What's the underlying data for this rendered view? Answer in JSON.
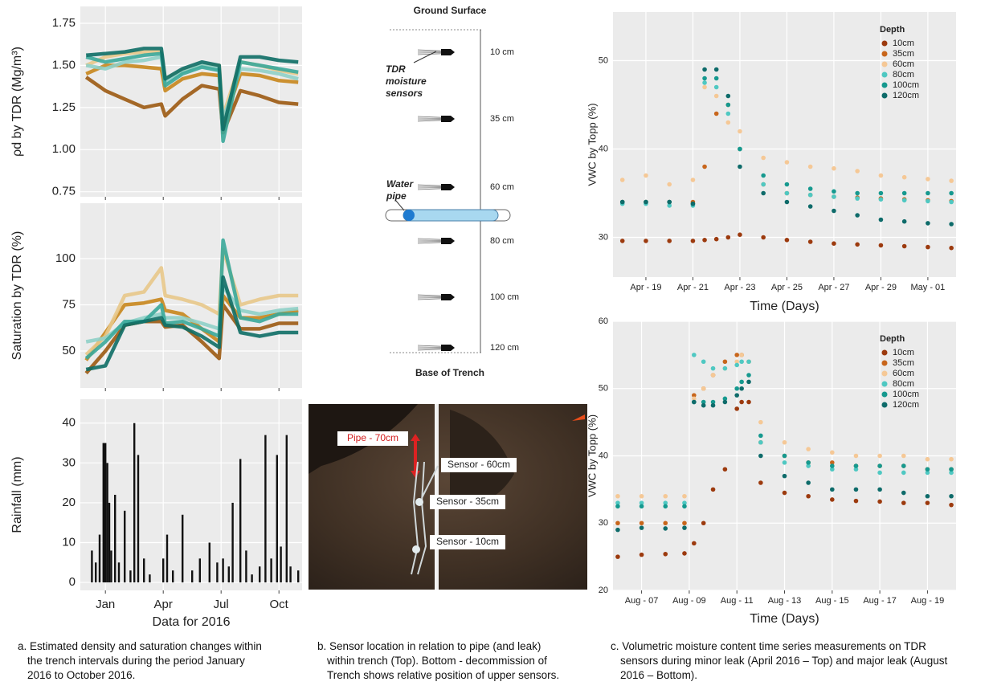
{
  "chart_data": [
    {
      "type": "line",
      "ylabel": "ρd by TDR (Mg/m³)",
      "x": [
        0,
        1,
        2,
        3,
        3.9,
        4.1,
        5,
        6,
        6.9,
        7.1,
        8,
        9,
        10,
        11
      ],
      "xlim": [
        -0.3,
        11.2
      ],
      "ylim": [
        0.72,
        1.85
      ],
      "yticks": [
        0.75,
        {
          "value": 1,
          "label": "1.00"
        },
        1.25,
        {
          "value": 1.5,
          "label": "1.50"
        },
        1.75
      ],
      "grid": true,
      "series": [
        {
          "color": "#9c5a12",
          "values": [
            1.43,
            1.35,
            1.3,
            1.25,
            1.27,
            1.2,
            1.3,
            1.38,
            1.36,
            1.1,
            1.35,
            1.32,
            1.28,
            1.27
          ]
        },
        {
          "color": "#c8861c",
          "values": [
            1.45,
            1.5,
            1.5,
            1.49,
            1.48,
            1.35,
            1.42,
            1.45,
            1.44,
            1.15,
            1.45,
            1.44,
            1.41,
            1.4
          ]
        },
        {
          "color": "#e8c88a",
          "values": [
            1.5,
            1.55,
            1.57,
            1.58,
            1.58,
            1.42,
            1.47,
            1.5,
            1.5,
            1.2,
            1.52,
            1.5,
            1.47,
            1.45
          ]
        },
        {
          "color": "#8fd0c8",
          "values": [
            1.5,
            1.48,
            1.52,
            1.53,
            1.55,
            1.4,
            1.46,
            1.5,
            1.48,
            1.18,
            1.48,
            1.47,
            1.45,
            1.42
          ]
        },
        {
          "color": "#3aa89a",
          "values": [
            1.55,
            1.52,
            1.54,
            1.56,
            1.57,
            1.38,
            1.45,
            1.49,
            1.47,
            1.05,
            1.52,
            1.5,
            1.48,
            1.46
          ]
        },
        {
          "color": "#0e6e66",
          "values": [
            1.56,
            1.57,
            1.58,
            1.6,
            1.6,
            1.42,
            1.48,
            1.52,
            1.5,
            1.12,
            1.55,
            1.55,
            1.53,
            1.52
          ]
        }
      ]
    },
    {
      "type": "line",
      "ylabel": "Saturation by TDR (%)",
      "x": [
        0,
        1,
        2,
        3,
        3.9,
        4.1,
        5,
        6,
        6.9,
        7.1,
        8,
        9,
        10,
        11
      ],
      "xlim": [
        -0.3,
        11.2
      ],
      "ylim": [
        30,
        130
      ],
      "yticks": [
        50,
        75,
        100
      ],
      "grid": true,
      "series": [
        {
          "color": "#9c5a12",
          "values": [
            38,
            50,
            64,
            66,
            66,
            63,
            64,
            55,
            46,
            75,
            62,
            62,
            65,
            65
          ]
        },
        {
          "color": "#c8861c",
          "values": [
            45,
            60,
            75,
            76,
            78,
            72,
            70,
            62,
            55,
            80,
            68,
            68,
            70,
            72
          ]
        },
        {
          "color": "#e8c88a",
          "values": [
            48,
            58,
            80,
            82,
            95,
            80,
            78,
            75,
            70,
            105,
            75,
            78,
            80,
            80
          ]
        },
        {
          "color": "#8fd0c8",
          "values": [
            55,
            57,
            65,
            68,
            70,
            68,
            68,
            65,
            62,
            85,
            72,
            70,
            72,
            73
          ]
        },
        {
          "color": "#3aa89a",
          "values": [
            46,
            55,
            66,
            66,
            75,
            65,
            66,
            62,
            58,
            110,
            68,
            66,
            70,
            70
          ]
        },
        {
          "color": "#0e6e66",
          "values": [
            40,
            42,
            64,
            66,
            68,
            64,
            63,
            58,
            52,
            90,
            60,
            58,
            60,
            60
          ]
        }
      ]
    },
    {
      "type": "bar",
      "ylabel": "Rainfall (mm)",
      "xlabel": "Data for 2016",
      "color": "#111",
      "x": [
        0.3,
        0.5,
        0.7,
        0.9,
        1.0,
        1.1,
        1.2,
        1.3,
        1.5,
        1.7,
        2.0,
        2.3,
        2.5,
        2.7,
        3.0,
        3.3,
        4.0,
        4.2,
        4.5,
        5.0,
        5.5,
        5.9,
        6.4,
        6.8,
        7.1,
        7.4,
        7.6,
        8.0,
        8.3,
        8.6,
        9.0,
        9.3,
        9.6,
        9.9,
        10.1,
        10.4,
        10.6,
        11.0
      ],
      "values": [
        8,
        5,
        12,
        35,
        35,
        30,
        20,
        8,
        22,
        5,
        18,
        3,
        40,
        32,
        6,
        2,
        6,
        12,
        3,
        17,
        3,
        6,
        10,
        5,
        6,
        4,
        20,
        31,
        8,
        2,
        4,
        37,
        6,
        32,
        9,
        37,
        4,
        3
      ],
      "xlim": [
        -0.3,
        11.2
      ],
      "xticks": [
        {
          "value": 1,
          "label": "Jan"
        },
        {
          "value": 4,
          "label": "Apr"
        },
        {
          "value": 7,
          "label": "Jul"
        },
        {
          "value": 10,
          "label": "Oct"
        }
      ],
      "ylim": [
        -2,
        46
      ],
      "yticks": [
        0,
        10,
        20,
        30,
        40
      ],
      "grid": true
    },
    {
      "type": "scatter",
      "ylabel": "VWC by Topp (%)",
      "xlabel": "Time (Days)",
      "legend_title": "Depth",
      "legend": "top-right",
      "x": [
        18,
        19,
        20,
        21,
        21.5,
        22,
        22.5,
        23,
        24,
        25,
        26,
        27,
        28,
        29,
        30,
        31,
        32
      ],
      "xlim": [
        17.6,
        32.2
      ],
      "xticks": [
        {
          "value": 19,
          "label": "Apr - 19"
        },
        {
          "value": 21,
          "label": "Apr - 21"
        },
        {
          "value": 23,
          "label": "Apr - 23"
        },
        {
          "value": 25,
          "label": "Apr - 25"
        },
        {
          "value": 27,
          "label": "Apr - 27"
        },
        {
          "value": 29,
          "label": "Apr - 29"
        },
        {
          "value": 31,
          "label": "May - 01"
        }
      ],
      "ylim": [
        25.5,
        55.5
      ],
      "yticks": [
        30,
        40,
        50
      ],
      "grid": true,
      "series": [
        {
          "name": "10cm",
          "color": "#9c3a0e",
          "values": [
            29.6,
            29.6,
            29.6,
            29.6,
            29.7,
            29.8,
            30.0,
            30.3,
            30.0,
            29.7,
            29.5,
            29.3,
            29.2,
            29.1,
            29.0,
            28.9,
            28.8
          ]
        },
        {
          "name": "35cm",
          "color": "#c8661c",
          "values": [
            34,
            34,
            34,
            34,
            38,
            44,
            45,
            40,
            36,
            35,
            34.8,
            34.6,
            34.5,
            34.4,
            34.3,
            34.2,
            34.1
          ]
        },
        {
          "name": "60cm",
          "color": "#f5c896",
          "values": [
            36.5,
            37,
            36,
            36.5,
            47,
            46,
            43,
            42,
            39,
            38.5,
            38,
            37.8,
            37.5,
            37,
            36.8,
            36.6,
            36.4
          ]
        },
        {
          "name": "80cm",
          "color": "#4fc8c2",
          "values": [
            33.8,
            33.8,
            33.6,
            33.6,
            47.5,
            47,
            44,
            40,
            36,
            35,
            34.8,
            34.6,
            34.4,
            34.3,
            34.2,
            34.1,
            34.0
          ]
        },
        {
          "name": "100cm",
          "color": "#16998f",
          "values": [
            34,
            34,
            34,
            33.8,
            48,
            48,
            45,
            40,
            37,
            36,
            35.5,
            35.2,
            35,
            35,
            35,
            35,
            35
          ]
        },
        {
          "name": "120cm",
          "color": "#0e6b6a",
          "values": [
            34,
            34,
            34,
            33.8,
            49,
            49,
            46,
            38,
            35,
            34,
            33.5,
            33,
            32.5,
            32,
            31.8,
            31.6,
            31.5
          ]
        }
      ]
    },
    {
      "type": "scatter",
      "ylabel": "VWC by Topp (%)",
      "xlabel": "Time (Days)",
      "legend_title": "Depth",
      "legend": "top-right",
      "x": [
        6,
        7,
        8,
        8.8,
        9.2,
        9.6,
        10,
        10.5,
        11,
        11.2,
        11.5,
        12,
        13,
        14,
        15,
        16,
        17,
        18,
        19,
        20
      ],
      "xlim": [
        5.8,
        20.2
      ],
      "xticks": [
        {
          "value": 7,
          "label": "Aug - 07"
        },
        {
          "value": 9,
          "label": "Aug - 09"
        },
        {
          "value": 11,
          "label": "Aug - 11"
        },
        {
          "value": 13,
          "label": "Aug - 13"
        },
        {
          "value": 15,
          "label": "Aug - 15"
        },
        {
          "value": 17,
          "label": "Aug - 17"
        },
        {
          "value": 19,
          "label": "Aug - 19"
        }
      ],
      "ylim": [
        20,
        60
      ],
      "yticks": [
        20,
        30,
        40,
        50,
        60
      ],
      "grid": true,
      "series": [
        {
          "name": "10cm",
          "color": "#9c3a0e",
          "values": [
            25,
            25.3,
            25.4,
            25.5,
            27,
            30,
            35,
            38,
            47,
            48,
            48,
            36,
            34.5,
            34,
            33.5,
            33.3,
            33.2,
            33,
            33,
            32.7
          ]
        },
        {
          "name": "35cm",
          "color": "#c8661c",
          "values": [
            30,
            30,
            30,
            30,
            49,
            50,
            52,
            54,
            55,
            55,
            54,
            42,
            40,
            39,
            39,
            38.5,
            38.5,
            38.5,
            38,
            38
          ]
        },
        {
          "name": "60cm",
          "color": "#f5c896",
          "values": [
            34,
            34,
            34,
            34,
            48.5,
            50,
            52,
            53,
            54,
            55,
            54,
            45,
            42,
            41,
            40.5,
            40,
            40,
            40,
            39.5,
            39.5
          ]
        },
        {
          "name": "80cm",
          "color": "#4fc8c2",
          "values": [
            33,
            33,
            33,
            33,
            55,
            54,
            53,
            53,
            53.5,
            54,
            54,
            42,
            39,
            38.5,
            38,
            38,
            37.5,
            37.5,
            37.5,
            37.5
          ]
        },
        {
          "name": "100cm",
          "color": "#16998f",
          "values": [
            32.5,
            32.5,
            32.5,
            32.5,
            48,
            48,
            48,
            48.5,
            50,
            51,
            52,
            43,
            40,
            39,
            38.5,
            38.5,
            38.5,
            38.5,
            38,
            38
          ]
        },
        {
          "name": "120cm",
          "color": "#0e6b6a",
          "values": [
            29,
            29.3,
            29.2,
            29.3,
            48,
            47.5,
            47.5,
            48,
            49,
            50,
            51,
            40,
            37,
            36,
            35,
            35,
            35,
            34.5,
            34,
            34
          ]
        }
      ]
    }
  ],
  "diagram": {
    "ground": "Ground Surface",
    "base": "Base of Trench",
    "sensor_labels": [
      "10 cm",
      "35 cm",
      "60 cm",
      "80 cm",
      "100 cm",
      "120 cm"
    ],
    "tdr_label": [
      "TDR",
      "moisture",
      "sensors"
    ],
    "pipe_label": [
      "Water",
      "pipe"
    ]
  },
  "photo": {
    "pipe": "Pipe - 70cm",
    "sensors": [
      "Sensor - 60cm",
      "Sensor - 35cm",
      "Sensor - 10cm"
    ]
  },
  "captions": [
    [
      "a. Estimated density and saturation changes within",
      "the trench intervals during the period January",
      "2016 to October 2016."
    ],
    [
      "b. Sensor location in relation to pipe (and leak)",
      "within trench (Top). Bottom - decommission of",
      "Trench shows relative position of upper sensors."
    ],
    [
      "c. Volumetric moisture content time series measurements on TDR",
      "sensors during minor leak (April 2016 – Top) and major leak (August",
      "2016 – Bottom)."
    ]
  ]
}
